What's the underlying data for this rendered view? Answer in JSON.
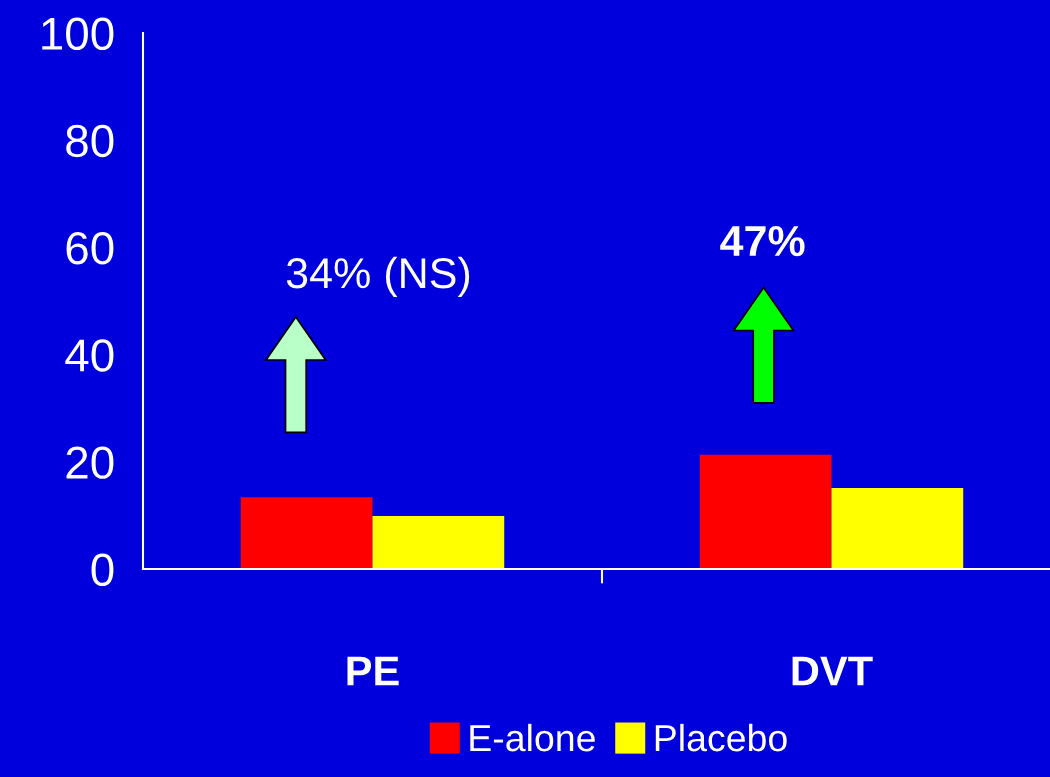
{
  "chart_data": {
    "type": "bar",
    "categories": [
      "PE",
      "DVT"
    ],
    "series": [
      {
        "name": "E-alone",
        "color": "#ff0000",
        "values": [
          13.4,
          21.3
        ]
      },
      {
        "name": "Placebo",
        "color": "#ffff00",
        "values": [
          9.9,
          15.1
        ]
      }
    ],
    "ylim": [
      0,
      100
    ],
    "yticks": [
      0,
      20,
      40,
      60,
      80,
      100
    ],
    "grid": false,
    "legend": "bottom",
    "annotations": [
      "34% (NS)",
      "47%"
    ]
  }
}
